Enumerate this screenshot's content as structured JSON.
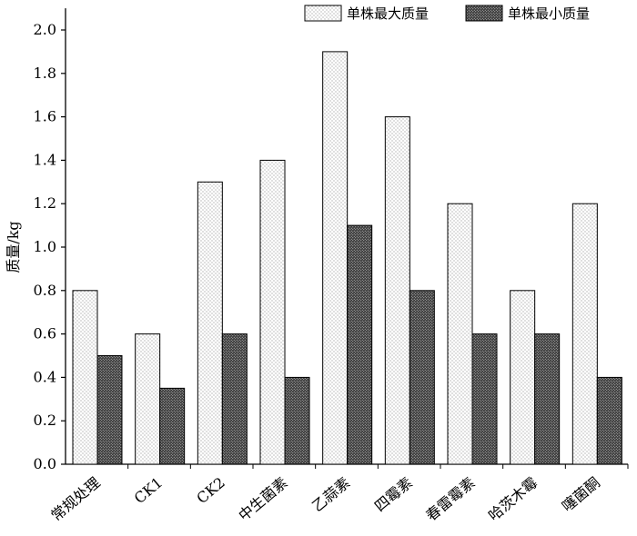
{
  "chart_data": {
    "type": "bar",
    "title": "",
    "xlabel": "",
    "ylabel": "质量/kg",
    "ylim": [
      0,
      2.1
    ],
    "yticks": [
      "0.0",
      "0.2",
      "0.4",
      "0.6",
      "0.8",
      "1.0",
      "1.2",
      "1.4",
      "1.6",
      "1.8",
      "2.0"
    ],
    "grid": false,
    "legend_position": "top-right",
    "categories": [
      "常规处理",
      "CK1",
      "CK2",
      "中生菌素",
      "乙蒜素",
      "四霉素",
      "春雷霉素",
      "哈茨木霉",
      "噻菌酮"
    ],
    "series": [
      {
        "name": "单株最大质量",
        "values": [
          0.8,
          0.6,
          1.3,
          1.4,
          1.9,
          1.6,
          1.2,
          0.8,
          1.2
        ],
        "pattern": "light-dots",
        "color": "#ffffff"
      },
      {
        "name": "单株最小质量",
        "values": [
          0.5,
          0.35,
          0.6,
          0.4,
          1.1,
          0.8,
          0.6,
          0.6,
          0.4
        ],
        "pattern": "dense-dots",
        "color": "#555555"
      }
    ]
  }
}
